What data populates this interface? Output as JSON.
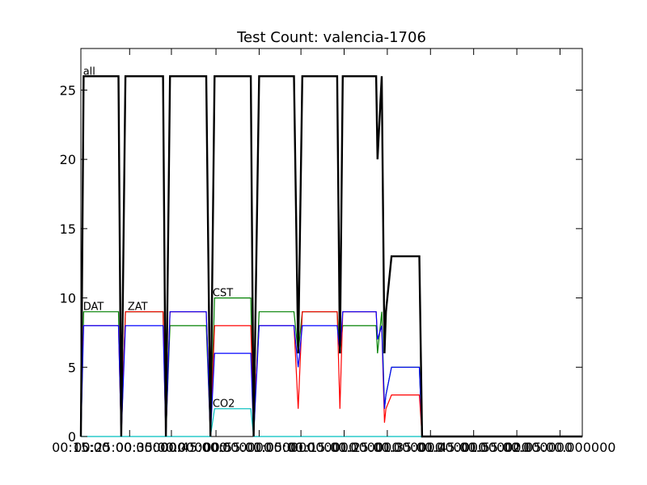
{
  "chart_data": {
    "type": "line",
    "title": "Test Count: valencia-1706",
    "xlabel": "",
    "ylabel": "",
    "ylim": [
      0,
      28
    ],
    "xlim": [
      0,
      360
    ],
    "grid": false,
    "yticks": [
      0,
      5,
      10,
      15,
      20,
      25
    ],
    "xticks": [
      {
        "x": 0,
        "label": "00:15:00"
      },
      {
        "x": 35,
        "label": "00:25:00.000000"
      },
      {
        "x": 65,
        "label": "00:35:00.000000"
      },
      {
        "x": 97,
        "label": "00:45:00.000000"
      },
      {
        "x": 128,
        "label": "00:55:00.000000"
      },
      {
        "x": 158,
        "label": "01:05:00.000000"
      },
      {
        "x": 189,
        "label": "01:15:00.000000"
      },
      {
        "x": 220,
        "label": "01:25:00.000000"
      },
      {
        "x": 251,
        "label": "01:35:00.000000"
      },
      {
        "x": 282,
        "label": "01:45:00.000000"
      },
      {
        "x": 313,
        "label": "01:55:00.000000"
      },
      {
        "x": 344,
        "label": "02:05:00.000000"
      }
    ],
    "series": [
      {
        "name": "all",
        "color": "#000000",
        "width": 2.4,
        "x": [
          0,
          2,
          27,
          29,
          32,
          59,
          61,
          64,
          90,
          93,
          96,
          122,
          124,
          128,
          153,
          156,
          159,
          184,
          186,
          188,
          212,
          213,
          216,
          218,
          219,
          223,
          243,
          245,
          360
        ],
        "y": [
          0,
          26,
          26,
          0,
          26,
          26,
          0,
          26,
          26,
          0,
          26,
          26,
          0,
          26,
          26,
          6,
          26,
          26,
          6,
          26,
          26,
          20,
          26,
          6,
          9,
          13,
          13,
          0,
          0
        ]
      },
      {
        "name": "DAT",
        "color": "#008000",
        "width": 1.2,
        "x": [
          0,
          2,
          27,
          29,
          32,
          59,
          61,
          64,
          90,
          93,
          96,
          122,
          124,
          128,
          153,
          156,
          159,
          184,
          186,
          188,
          212,
          213,
          216,
          218,
          219,
          223,
          243,
          245,
          360
        ],
        "y": [
          0,
          9,
          9,
          0,
          9,
          9,
          0,
          8,
          8,
          0,
          10,
          10,
          0,
          9,
          9,
          6,
          9,
          9,
          6,
          8,
          8,
          6,
          9,
          2,
          3,
          5,
          5,
          0,
          0
        ]
      },
      {
        "name": "ZAT",
        "color": "#ff0000",
        "width": 1.2,
        "x": [
          0,
          2,
          27,
          29,
          32,
          59,
          61,
          64,
          90,
          93,
          96,
          122,
          124,
          128,
          153,
          156,
          159,
          184,
          186,
          188,
          212,
          213,
          216,
          218,
          219,
          223,
          243,
          245,
          360
        ],
        "y": [
          3,
          8,
          8,
          0,
          9,
          9,
          0,
          9,
          9,
          0,
          8,
          8,
          1,
          8,
          8,
          2,
          9,
          9,
          2,
          9,
          9,
          7,
          8,
          1,
          2,
          3,
          3,
          0,
          0
        ]
      },
      {
        "name": "",
        "color": "#0000ff",
        "width": 1.2,
        "x": [
          0,
          2,
          27,
          29,
          32,
          59,
          61,
          64,
          90,
          93,
          96,
          122,
          124,
          128,
          153,
          156,
          159,
          184,
          186,
          188,
          212,
          213,
          216,
          218,
          219,
          223,
          243,
          245,
          360
        ],
        "y": [
          0,
          8,
          8,
          0,
          8,
          8,
          0,
          9,
          9,
          0,
          6,
          6,
          0,
          8,
          8,
          5,
          8,
          8,
          6,
          9,
          9,
          7,
          8,
          2,
          3,
          5,
          5,
          0,
          0
        ]
      },
      {
        "name": "CST",
        "color": "#00bfbf",
        "width": 1.2,
        "x": [
          0,
          93,
          96,
          122,
          124,
          360
        ],
        "y": [
          0,
          0,
          2,
          2,
          0,
          0
        ]
      }
    ],
    "annotations": [
      {
        "text": "all",
        "x": 1,
        "y": 26
      },
      {
        "text": "DAT",
        "x": 1,
        "y": 9
      },
      {
        "text": "ZAT",
        "x": 33,
        "y": 9
      },
      {
        "text": "CST",
        "x": 94,
        "y": 10
      },
      {
        "text": "CO2",
        "x": 94,
        "y": 2
      }
    ]
  }
}
